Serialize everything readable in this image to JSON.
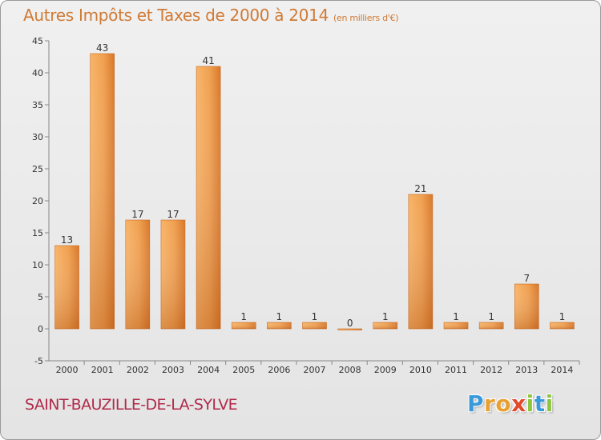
{
  "header": {
    "title": "Autres Impôts et Taxes de 2000 à 2014",
    "unit": "(en milliers d'€)"
  },
  "footer": {
    "commune": "SAINT-BAUZILLE-DE-LA-SYLVE",
    "logo_letters": [
      "P",
      "r",
      "o",
      "x",
      "i",
      "t",
      "i"
    ],
    "logo_colors": [
      "#3a9ad9",
      "#e8a030",
      "#e8a030",
      "#e04a2a",
      "#8cc63e",
      "#3a9ad9",
      "#8cc63e"
    ]
  },
  "colors": {
    "bar_light": "#f5a95a",
    "bar_dark": "#d8782a",
    "title": "#d07a35",
    "commune": "#b02a4a",
    "axis_text": "#333333"
  },
  "chart_data": {
    "type": "bar",
    "categories": [
      "2000",
      "2001",
      "2002",
      "2003",
      "2004",
      "2005",
      "2006",
      "2007",
      "2008",
      "2009",
      "2010",
      "2011",
      "2012",
      "2013",
      "2014"
    ],
    "values": [
      13,
      43,
      17,
      17,
      41,
      1,
      1,
      1,
      0,
      1,
      21,
      1,
      1,
      7,
      1
    ],
    "ylim": [
      -5,
      45
    ],
    "yticks": [
      -5,
      0,
      5,
      10,
      15,
      20,
      25,
      30,
      35,
      40,
      45
    ],
    "title": "Autres Impôts et Taxes de 2000 à 2014",
    "ylabel": "(en milliers d'€)",
    "xlabel": "",
    "grid": false,
    "data_labels": true
  }
}
